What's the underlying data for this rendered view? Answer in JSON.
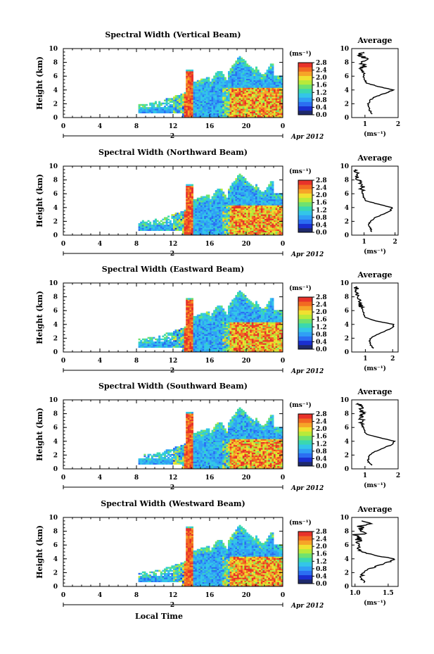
{
  "figure": {
    "time_axis_label": "Local Time",
    "date_label": "Apr 2012",
    "day_label": "2",
    "avg_title": "Average",
    "unit_label": "(ms⁻¹)",
    "y_label": "Height (km)"
  },
  "colors": {
    "scale": [
      "#1f2a6b",
      "#1a2fd0",
      "#2b6ef2",
      "#30a0f5",
      "#33c6e8",
      "#3ad8b0",
      "#6fe26f",
      "#b8ea3a",
      "#f0e030",
      "#f6a428",
      "#f26a22",
      "#e8322a"
    ]
  },
  "chart_data": [
    {
      "type": "heatmap",
      "title": "Spectral Width (Vertical Beam)",
      "ylabel": "Height (km)",
      "xlabel": "",
      "x_ticks": [
        "0",
        "4",
        "8",
        "12",
        "16",
        "20",
        "0"
      ],
      "y_ticks": [
        "0",
        "2",
        "4",
        "6",
        "8",
        "10"
      ],
      "xlim": [
        0,
        24
      ],
      "ylim": [
        0,
        10
      ],
      "colorbar": {
        "unit": "(ms⁻¹)",
        "ticks": [
          "0.0",
          "0.4",
          "0.8",
          "1.2",
          "1.6",
          "2.0",
          "2.4",
          "2.8"
        ],
        "range": [
          0,
          2.8
        ]
      },
      "average": {
        "title": "Average",
        "xlabel": "(ms⁻¹)",
        "x_ticks": [
          "1",
          "2"
        ],
        "xlim": [
          0.6,
          2.0
        ],
        "heights": [
          0.5,
          1,
          1.5,
          2,
          2.5,
          3,
          3.5,
          4,
          4.5,
          5,
          5.5,
          6,
          6.5,
          7,
          7.5,
          8,
          8.5,
          9,
          9.5
        ],
        "values": [
          1.2,
          1.15,
          1.1,
          1.1,
          1.15,
          1.3,
          1.6,
          1.85,
          1.4,
          1.05,
          0.98,
          0.95,
          0.98,
          0.9,
          1.0,
          0.88,
          1.05,
          0.85,
          0.95
        ]
      }
    },
    {
      "type": "heatmap",
      "title": "Spectral Width (Northward Beam)",
      "ylabel": "Height (km)",
      "xlabel": "",
      "x_ticks": [
        "0",
        "4",
        "8",
        "12",
        "16",
        "20",
        "0"
      ],
      "y_ticks": [
        "0",
        "2",
        "4",
        "6",
        "8",
        "10"
      ],
      "xlim": [
        0,
        24
      ],
      "ylim": [
        0,
        10
      ],
      "colorbar": {
        "unit": "(ms⁻¹)",
        "ticks": [
          "0.0",
          "0.4",
          "0.8",
          "1.2",
          "1.6",
          "2.0",
          "2.4",
          "2.8"
        ],
        "range": [
          0,
          2.8
        ]
      },
      "average": {
        "title": "Average",
        "xlabel": "(ms⁻¹)",
        "x_ticks": [
          "1",
          "2"
        ],
        "xlim": [
          0.6,
          2.1
        ],
        "heights": [
          0.5,
          1,
          1.5,
          2,
          2.5,
          3,
          3.5,
          4,
          4.5,
          5,
          5.5,
          6,
          6.5,
          7,
          7.5,
          8,
          8.5,
          9,
          9.5
        ],
        "values": [
          1.25,
          1.2,
          1.15,
          1.2,
          1.35,
          1.6,
          1.85,
          1.9,
          1.45,
          1.05,
          0.98,
          0.95,
          0.92,
          0.95,
          0.85,
          0.82,
          0.8,
          0.75,
          0.7
        ]
      }
    },
    {
      "type": "heatmap",
      "title": "Spectral Width (Eastward Beam)",
      "ylabel": "Height (km)",
      "xlabel": "",
      "x_ticks": [
        "0",
        "4",
        "8",
        "12",
        "16",
        "20",
        "0"
      ],
      "y_ticks": [
        "0",
        "2",
        "4",
        "6",
        "8",
        "10"
      ],
      "xlim": [
        0,
        24
      ],
      "ylim": [
        0,
        10
      ],
      "colorbar": {
        "unit": "(ms⁻¹)",
        "ticks": [
          "0.0",
          "0.4",
          "0.8",
          "1.2",
          "1.6",
          "2.0",
          "2.4",
          "2.8"
        ],
        "range": [
          0,
          2.8
        ]
      },
      "average": {
        "title": "Average",
        "xlabel": "(ms⁻¹)",
        "x_ticks": [
          "1",
          "2"
        ],
        "xlim": [
          0.5,
          2.2
        ],
        "heights": [
          0.5,
          1,
          1.5,
          2,
          2.5,
          3,
          3.5,
          4,
          4.5,
          5,
          5.5,
          6,
          6.5,
          7,
          7.5,
          8,
          8.5,
          9,
          9.5
        ],
        "values": [
          1.3,
          1.2,
          1.15,
          1.2,
          1.4,
          1.7,
          2.0,
          2.05,
          1.4,
          1.0,
          0.95,
          0.9,
          0.85,
          0.8,
          0.82,
          0.75,
          0.7,
          0.68,
          0.65
        ]
      }
    },
    {
      "type": "heatmap",
      "title": "Spectral Width (Southward Beam)",
      "ylabel": "Height (km)",
      "xlabel": "",
      "x_ticks": [
        "0",
        "4",
        "8",
        "12",
        "16",
        "20",
        "0"
      ],
      "y_ticks": [
        "0",
        "2",
        "4",
        "6",
        "8",
        "10"
      ],
      "xlim": [
        0,
        24
      ],
      "ylim": [
        0,
        10
      ],
      "colorbar": {
        "unit": "(ms⁻¹)",
        "ticks": [
          "0.0",
          "0.4",
          "0.8",
          "1.2",
          "1.6",
          "2.0",
          "2.4",
          "2.8"
        ],
        "range": [
          0,
          2.8
        ]
      },
      "average": {
        "title": "Average",
        "xlabel": "(ms⁻¹)",
        "x_ticks": [
          "1",
          "2"
        ],
        "xlim": [
          0.6,
          2.0
        ],
        "heights": [
          0.5,
          1,
          1.5,
          2,
          2.5,
          3,
          3.5,
          4,
          4.5,
          5,
          5.5,
          6,
          6.5,
          7,
          7.5,
          8,
          8.5,
          9,
          9.5
        ],
        "values": [
          1.2,
          1.1,
          1.1,
          1.15,
          1.3,
          1.55,
          1.8,
          1.9,
          1.45,
          1.05,
          0.98,
          0.95,
          0.9,
          0.92,
          0.88,
          0.95,
          0.85,
          0.9,
          0.8
        ]
      }
    },
    {
      "type": "heatmap",
      "title": "Spectral Width (Westward Beam)",
      "ylabel": "Height (km)",
      "xlabel": "Local Time",
      "x_ticks": [
        "0",
        "4",
        "8",
        "12",
        "16",
        "20",
        "0"
      ],
      "y_ticks": [
        "0",
        "2",
        "4",
        "6",
        "8",
        "10"
      ],
      "xlim": [
        0,
        24
      ],
      "ylim": [
        0,
        10
      ],
      "colorbar": {
        "unit": "(ms⁻¹)",
        "ticks": [
          "0.0",
          "0.4",
          "0.8",
          "1.2",
          "1.6",
          "2.0",
          "2.4",
          "2.8"
        ],
        "range": [
          0,
          2.8
        ]
      },
      "average": {
        "title": "Average",
        "xlabel": "(ms⁻¹)",
        "x_ticks": [
          "1.0",
          "1.5"
        ],
        "xlim": [
          0.95,
          1.65
        ],
        "heights": [
          0.5,
          1,
          1.5,
          2,
          2.5,
          3,
          3.5,
          4,
          4.5,
          5,
          5.5,
          6,
          6.5,
          7,
          7.5,
          8,
          8.5,
          9,
          9.5
        ],
        "values": [
          1.15,
          1.1,
          1.1,
          1.12,
          1.2,
          1.35,
          1.5,
          1.6,
          1.3,
          1.1,
          1.05,
          1.08,
          1.02,
          1.1,
          1.05,
          1.15,
          1.05,
          1.2,
          1.1
        ]
      }
    }
  ]
}
